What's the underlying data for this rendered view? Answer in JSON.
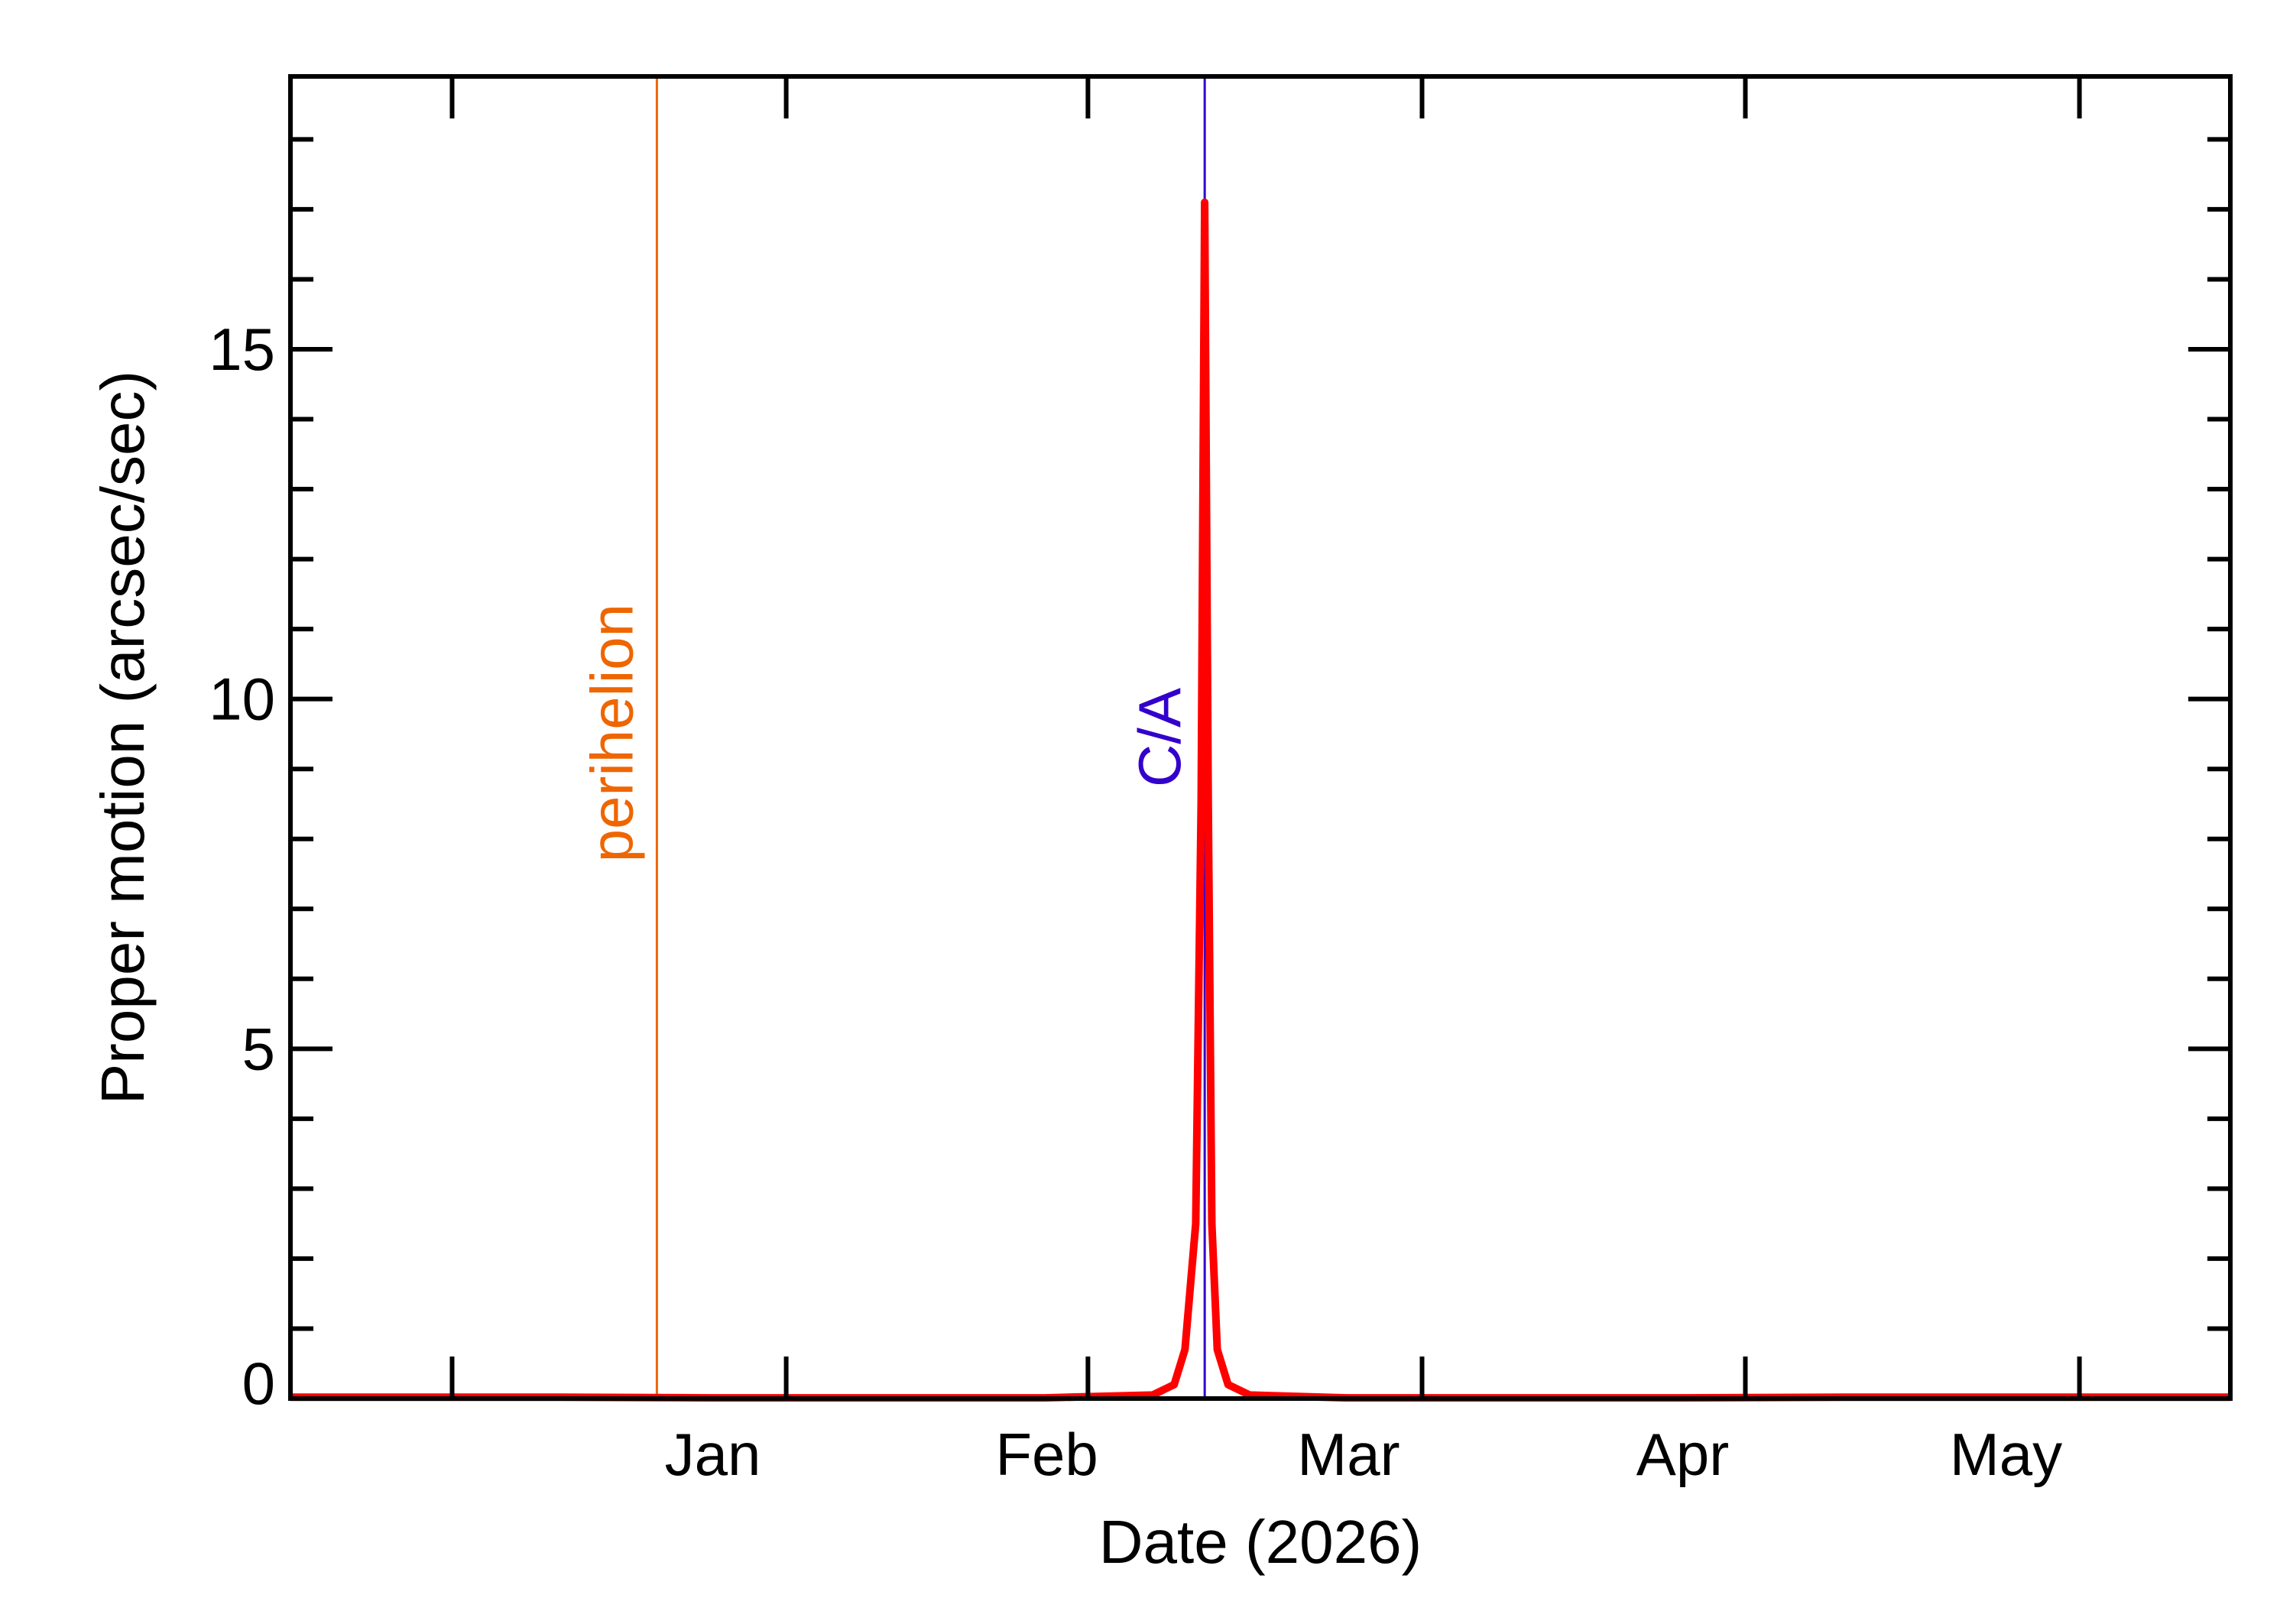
{
  "chart_data": {
    "type": "line",
    "title": "",
    "xlabel": "Date (2026)",
    "ylabel": "Proper motion (arcsec/sec)",
    "x_range": [
      "2025-12-07",
      "2026-06-05"
    ],
    "ylim": [
      0,
      18.9
    ],
    "x_ticks": [
      {
        "date": "2026-01-01",
        "label": "Jan"
      },
      {
        "date": "2026-02-01",
        "label": "Feb"
      },
      {
        "date": "2026-03-01",
        "label": "Mar"
      },
      {
        "date": "2026-04-01",
        "label": "Apr"
      },
      {
        "date": "2026-05-01",
        "label": "May"
      }
    ],
    "x_major_tick_dates": [
      "2025-12-22",
      "2026-01-22",
      "2026-02-19",
      "2026-03-22",
      "2026-04-21",
      "2026-05-22"
    ],
    "y_ticks": [
      {
        "value": 0,
        "label": "0"
      },
      {
        "value": 5,
        "label": "5"
      },
      {
        "value": 10,
        "label": "10"
      },
      {
        "value": 15,
        "label": "15"
      }
    ],
    "y_minor_step": 1,
    "grid": false,
    "series": [
      {
        "color": "#ff0000",
        "points": [
          [
            "2025-12-07",
            0.02
          ],
          [
            "2025-12-20",
            0.02
          ],
          [
            "2026-01-01",
            0.02
          ],
          [
            "2026-01-15",
            0.01
          ],
          [
            "2026-02-01",
            0.01
          ],
          [
            "2026-02-15",
            0.01
          ],
          [
            "2026-02-25",
            0.05
          ],
          [
            "2026-02-27",
            0.2
          ],
          [
            "2026-02-28",
            0.7
          ],
          [
            "2026-03-01",
            2.5
          ],
          [
            "2026-03-01T12:00",
            8.5
          ],
          [
            "2026-03-01T20:00",
            17.1
          ],
          [
            "2026-03-02T04:00",
            8.5
          ],
          [
            "2026-03-02T12:00",
            2.5
          ],
          [
            "2026-03-03",
            0.7
          ],
          [
            "2026-03-04",
            0.2
          ],
          [
            "2026-03-06",
            0.05
          ],
          [
            "2026-03-15",
            0.01
          ],
          [
            "2026-04-01",
            0.01
          ],
          [
            "2026-04-15",
            0.01
          ],
          [
            "2026-05-01",
            0.02
          ],
          [
            "2026-05-20",
            0.02
          ],
          [
            "2026-06-05",
            0.02
          ]
        ]
      }
    ],
    "annotations": [
      {
        "label": "perihelion",
        "date": "2026-01-10",
        "color": "#ee6600"
      },
      {
        "label": "C/A",
        "date": "2026-03-01T20:00",
        "color": "#3300cc"
      }
    ]
  }
}
